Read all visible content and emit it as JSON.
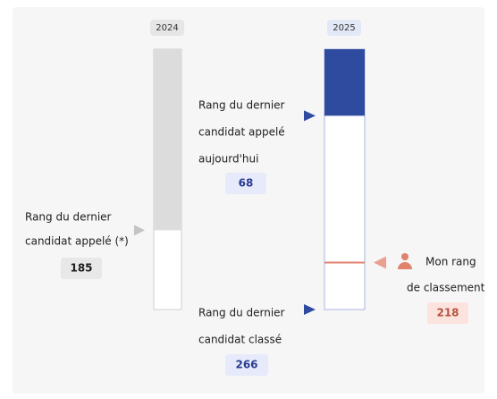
{
  "col2024": {
    "year": "2024",
    "called_label": [
      "Rang du dernier",
      "candidat appelé (*)"
    ],
    "called": 185
  },
  "col2025": {
    "year": "2025",
    "called_label": [
      "Rang du dernier",
      "candidat appelé",
      "aujourd'hui"
    ],
    "called": 68,
    "last_label": [
      "Rang du dernier",
      "candidat classé"
    ],
    "last": 266,
    "mine_label": [
      "Mon rang",
      "de classement"
    ],
    "mine": 218
  }
}
